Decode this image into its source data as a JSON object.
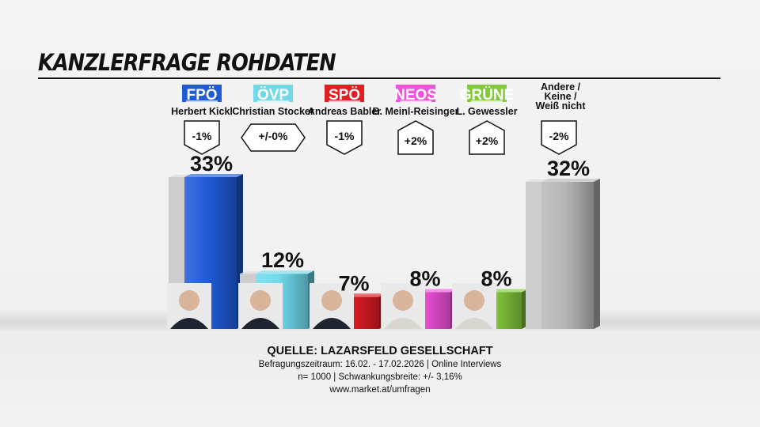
{
  "title": "KANZLERFRAGE ROHDATEN",
  "chart_data": {
    "type": "bar",
    "title": "KANZLERFRAGE ROHDATEN",
    "unit": "%",
    "categories": [
      "FPÖ",
      "ÖVP",
      "SPÖ",
      "NEOS",
      "GRÜNE",
      "Andere / Keine / Weiß nicht"
    ],
    "candidates": [
      "Herbert Kickl",
      "Christian Stocker",
      "Andreas Babler",
      "B. Meinl-Reisinger",
      "L. Gewessler",
      ""
    ],
    "values": [
      33,
      12,
      7,
      8,
      8,
      32
    ],
    "labels": [
      "33%",
      "12%",
      "7%",
      "8%",
      "8%",
      "32%"
    ],
    "changes": [
      "-1%",
      "+/-0%",
      "-1%",
      "+2%",
      "+2%",
      "-2%"
    ],
    "change_direction": [
      "down",
      "neutral",
      "down",
      "up",
      "up",
      "down"
    ],
    "previous_values_shown_as_grey_bars": true,
    "colors": [
      "#1f5ad8",
      "#6fd9ea",
      "#e21d23",
      "#f152dc",
      "#83c93c",
      "#b7b7b7"
    ],
    "label_text_colors": [
      "#ffffff",
      "#ffffff",
      "#ffffff",
      "#ffffff",
      "#ffffff",
      "#111111"
    ],
    "other_label_lines": [
      "Andere /",
      "Keine /",
      "Weiß nicht"
    ]
  },
  "footer": {
    "source": "QUELLE: LAZARSFELD GESELLSCHAFT",
    "line1": "Befragungszeitraum:  16.02. - 17.02.2026  | Online Interviews",
    "line2": "n= 1000 | Schwankungsbreite: +/- 3,16%",
    "line3": "www.market.at/umfragen"
  }
}
